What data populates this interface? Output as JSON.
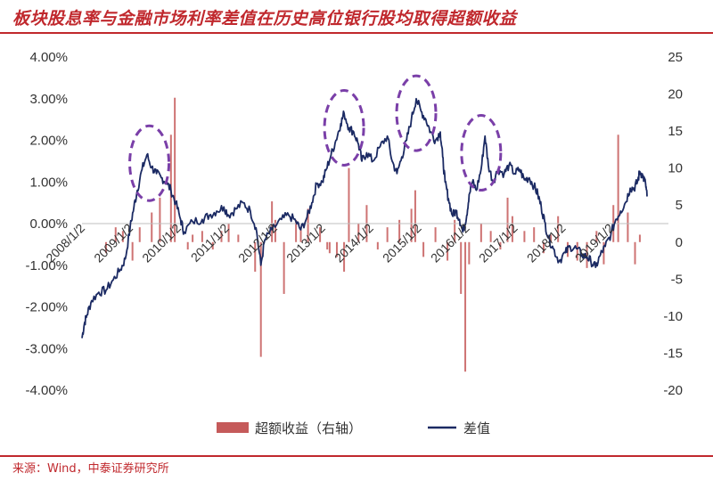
{
  "header": {
    "title": "板块股息率与金融市场利率差值在历史高位银行股均取得超额收益"
  },
  "footer": {
    "source": "来源：Wind，中泰证券研究所"
  },
  "colors": {
    "line": "#1b2a63",
    "bar": "#c55a5a",
    "highlight": "#7a3fa8",
    "accent": "#c0282d"
  },
  "chart_data": {
    "type": "line+bar",
    "title": "板块股息率与金融市场利率差值在历史高位银行股均取得超额收益",
    "x_tick_labels": [
      "2008/1/2",
      "2009/1/2",
      "2010/1/2",
      "2011/1/2",
      "2012/1/2",
      "2013/1/2",
      "2014/1/2",
      "2015/1/2",
      "2016/1/2",
      "2017/1/2",
      "2018/1/2",
      "2019/1/2"
    ],
    "x_range": [
      2008.0,
      2019.75
    ],
    "y_left": {
      "range": [
        -4.0,
        4.0
      ],
      "ticks": [
        "4.00%",
        "3.00%",
        "2.00%",
        "1.00%",
        "0.00%",
        "-1.00%",
        "-2.00%",
        "-3.00%",
        "-4.00%"
      ]
    },
    "y_right": {
      "range": [
        -20,
        25
      ],
      "ticks": [
        "25",
        "20",
        "15",
        "10",
        "5",
        "0",
        "-5",
        "-10",
        "-15",
        "-20"
      ]
    },
    "series": [
      {
        "name": "超额收益（右轴）",
        "type": "bar",
        "axis": "right",
        "points": [
          [
            2008.5,
            -1.5
          ],
          [
            2008.7,
            2.0
          ],
          [
            2008.85,
            1.5
          ],
          [
            2009.05,
            -2.5
          ],
          [
            2009.2,
            2.0
          ],
          [
            2009.45,
            4.0
          ],
          [
            2009.62,
            6.0
          ],
          [
            2009.85,
            14.5
          ],
          [
            2009.93,
            19.5
          ],
          [
            2010.2,
            -1.0
          ],
          [
            2010.3,
            1.0
          ],
          [
            2010.5,
            1.5
          ],
          [
            2010.72,
            -1.0
          ],
          [
            2010.9,
            1.5
          ],
          [
            2011.05,
            2.5
          ],
          [
            2011.25,
            1.0
          ],
          [
            2011.6,
            -4.0
          ],
          [
            2011.72,
            -15.5
          ],
          [
            2011.95,
            5.5
          ],
          [
            2012.02,
            3.0
          ],
          [
            2012.2,
            -7.0
          ],
          [
            2012.45,
            3.0
          ],
          [
            2012.55,
            2.0
          ],
          [
            2012.7,
            4.5
          ],
          [
            2012.95,
            2.0
          ],
          [
            2013.1,
            -1.0
          ],
          [
            2013.15,
            -1.5
          ],
          [
            2013.3,
            -2.0
          ],
          [
            2013.45,
            -4.0
          ],
          [
            2013.55,
            10.0
          ],
          [
            2013.75,
            2.5
          ],
          [
            2013.92,
            5.0
          ],
          [
            2014.15,
            -1.0
          ],
          [
            2014.35,
            2.0
          ],
          [
            2014.6,
            3.0
          ],
          [
            2014.85,
            4.5
          ],
          [
            2014.93,
            7.0
          ],
          [
            2015.1,
            -2.0
          ],
          [
            2015.35,
            2.0
          ],
          [
            2015.6,
            -2.5
          ],
          [
            2015.75,
            3.0
          ],
          [
            2015.88,
            -7.0
          ],
          [
            2015.97,
            -17.5
          ],
          [
            2016.05,
            -3.0
          ],
          [
            2016.3,
            2.5
          ],
          [
            2016.5,
            1.5
          ],
          [
            2016.7,
            -1.0
          ],
          [
            2016.85,
            6.0
          ],
          [
            2016.95,
            3.5
          ],
          [
            2017.2,
            1.5
          ],
          [
            2017.4,
            2.0
          ],
          [
            2017.6,
            -1.5
          ],
          [
            2017.75,
            1.0
          ],
          [
            2017.9,
            3.5
          ],
          [
            2018.1,
            -2.0
          ],
          [
            2018.3,
            -2.5
          ],
          [
            2018.5,
            -3.5
          ],
          [
            2018.7,
            1.5
          ],
          [
            2018.85,
            -3.0
          ],
          [
            2019.05,
            5.0
          ],
          [
            2019.15,
            14.5
          ],
          [
            2019.35,
            4.0
          ],
          [
            2019.5,
            -3.0
          ],
          [
            2019.6,
            1.0
          ]
        ]
      },
      {
        "name": "差值",
        "type": "line",
        "axis": "left",
        "points": [
          [
            2008.0,
            -2.75
          ],
          [
            2008.05,
            -2.4
          ],
          [
            2008.1,
            -2.2
          ],
          [
            2008.2,
            -1.85
          ],
          [
            2008.35,
            -1.65
          ],
          [
            2008.5,
            -1.6
          ],
          [
            2008.65,
            -1.35
          ],
          [
            2008.8,
            -1.1
          ],
          [
            2008.9,
            -0.85
          ],
          [
            2009.0,
            -0.1
          ],
          [
            2009.08,
            0.4
          ],
          [
            2009.15,
            0.8
          ],
          [
            2009.25,
            1.3
          ],
          [
            2009.35,
            1.65
          ],
          [
            2009.45,
            1.35
          ],
          [
            2009.55,
            1.2
          ],
          [
            2009.65,
            1.1
          ],
          [
            2009.75,
            1.0
          ],
          [
            2009.85,
            0.8
          ],
          [
            2009.95,
            0.5
          ],
          [
            2010.05,
            0.1
          ],
          [
            2010.12,
            -0.2
          ],
          [
            2010.3,
            0.05
          ],
          [
            2010.5,
            0.1
          ],
          [
            2010.65,
            0.2
          ],
          [
            2010.8,
            0.3
          ],
          [
            2010.95,
            0.4
          ],
          [
            2011.05,
            0.2
          ],
          [
            2011.2,
            0.35
          ],
          [
            2011.35,
            0.5
          ],
          [
            2011.5,
            0.3
          ],
          [
            2011.62,
            -0.1
          ],
          [
            2011.72,
            -1.0
          ],
          [
            2011.8,
            -0.4
          ],
          [
            2011.95,
            -0.15
          ],
          [
            2012.15,
            0.1
          ],
          [
            2012.3,
            0.2
          ],
          [
            2012.45,
            0.05
          ],
          [
            2012.55,
            -0.15
          ],
          [
            2012.68,
            0.15
          ],
          [
            2012.78,
            0.5
          ],
          [
            2012.88,
            0.95
          ],
          [
            2013.0,
            1.0
          ],
          [
            2013.08,
            1.3
          ],
          [
            2013.18,
            1.65
          ],
          [
            2013.28,
            2.0
          ],
          [
            2013.38,
            2.4
          ],
          [
            2013.45,
            2.65
          ],
          [
            2013.55,
            2.3
          ],
          [
            2013.65,
            2.2
          ],
          [
            2013.75,
            1.9
          ],
          [
            2013.82,
            1.5
          ],
          [
            2013.92,
            1.7
          ],
          [
            2014.05,
            1.5
          ],
          [
            2014.2,
            1.85
          ],
          [
            2014.35,
            2.1
          ],
          [
            2014.45,
            1.5
          ],
          [
            2014.55,
            1.2
          ],
          [
            2014.65,
            1.6
          ],
          [
            2014.75,
            2.0
          ],
          [
            2014.85,
            2.5
          ],
          [
            2014.95,
            3.0
          ],
          [
            2015.05,
            2.7
          ],
          [
            2015.15,
            2.5
          ],
          [
            2015.25,
            2.2
          ],
          [
            2015.35,
            2.0
          ],
          [
            2015.45,
            2.2
          ],
          [
            2015.5,
            1.6
          ],
          [
            2015.55,
            1.0
          ],
          [
            2015.62,
            0.6
          ],
          [
            2015.7,
            0.2
          ],
          [
            2015.78,
            0.3
          ],
          [
            2015.85,
            0.1
          ],
          [
            2015.92,
            -0.2
          ],
          [
            2016.0,
            0.2
          ],
          [
            2016.05,
            0.7
          ],
          [
            2016.12,
            1.0
          ],
          [
            2016.2,
            0.8
          ],
          [
            2016.3,
            1.3
          ],
          [
            2016.38,
            2.1
          ],
          [
            2016.45,
            1.4
          ],
          [
            2016.55,
            1.0
          ],
          [
            2016.65,
            1.3
          ],
          [
            2016.78,
            1.2
          ],
          [
            2016.88,
            1.4
          ],
          [
            2017.0,
            1.2
          ],
          [
            2017.1,
            1.3
          ],
          [
            2017.2,
            1.05
          ],
          [
            2017.3,
            1.1
          ],
          [
            2017.4,
            0.9
          ],
          [
            2017.48,
            0.7
          ],
          [
            2017.55,
            0.4
          ],
          [
            2017.62,
            0.05
          ],
          [
            2017.7,
            -0.35
          ],
          [
            2017.8,
            -0.6
          ],
          [
            2017.92,
            -0.9
          ],
          [
            2018.05,
            -0.7
          ],
          [
            2018.15,
            -0.55
          ],
          [
            2018.28,
            -0.6
          ],
          [
            2018.4,
            -0.75
          ],
          [
            2018.5,
            -0.8
          ],
          [
            2018.58,
            -0.9
          ],
          [
            2018.68,
            -1.05
          ],
          [
            2018.78,
            -0.75
          ],
          [
            2018.88,
            -0.55
          ],
          [
            2019.0,
            -0.25
          ],
          [
            2019.1,
            0.1
          ],
          [
            2019.2,
            0.3
          ],
          [
            2019.3,
            0.5
          ],
          [
            2019.4,
            0.85
          ],
          [
            2019.48,
            0.85
          ],
          [
            2019.55,
            1.0
          ],
          [
            2019.6,
            1.25
          ],
          [
            2019.66,
            1.15
          ],
          [
            2019.72,
            0.95
          ],
          [
            2019.75,
            0.65
          ]
        ]
      }
    ],
    "highlights": [
      {
        "x": 2009.4,
        "y": 1.45
      },
      {
        "x": 2013.45,
        "y": 2.3
      },
      {
        "x": 2014.95,
        "y": 2.65
      },
      {
        "x": 2016.3,
        "y": 1.7
      }
    ],
    "legend": {
      "position": "bottom-center",
      "entries": [
        "超额收益（右轴）",
        "差值"
      ]
    }
  }
}
